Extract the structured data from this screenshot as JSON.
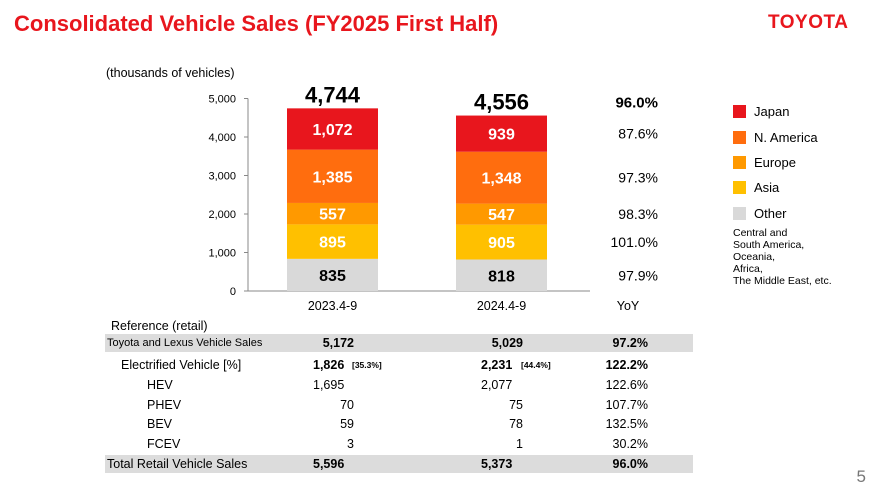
{
  "header": {
    "title": "Consolidated Vehicle Sales (FY2025 First Half)",
    "brand": "TOYOTA"
  },
  "units": "(thousands of vehicles)",
  "chart_data": {
    "type": "bar",
    "stacked": true,
    "categories": [
      "2023.4-9",
      "2024.4-9"
    ],
    "totals": [
      "4,744",
      "4,556"
    ],
    "series": [
      {
        "name": "Other",
        "values": [
          835,
          818
        ],
        "labels": [
          "835",
          "818"
        ],
        "color": "#d9d9d9",
        "label_color": "#000000",
        "yoy": "97.9%"
      },
      {
        "name": "Asia",
        "values": [
          895,
          905
        ],
        "labels": [
          "895",
          "905"
        ],
        "color": "#ffc000",
        "label_color": "#ffffff",
        "yoy": "101.0%"
      },
      {
        "name": "Europe",
        "values": [
          557,
          547
        ],
        "labels": [
          "557",
          "547"
        ],
        "color": "#ff9900",
        "label_color": "#ffffff",
        "yoy": "98.3%"
      },
      {
        "name": "N. America",
        "values": [
          1385,
          1348
        ],
        "labels": [
          "1,385",
          "1,348"
        ],
        "color": "#ff6d0e",
        "label_color": "#ffffff",
        "yoy": "97.3%"
      },
      {
        "name": "Japan",
        "values": [
          1072,
          939
        ],
        "labels": [
          "1,072",
          "939"
        ],
        "color": "#e8161d",
        "label_color": "#ffffff",
        "yoy": "87.6%"
      }
    ],
    "total_yoy": "96.0%",
    "yoy_label": "YoY",
    "ylim": [
      0,
      5000
    ],
    "yticks": [
      0,
      1000,
      2000,
      3000,
      4000,
      5000
    ],
    "ytick_labels": [
      "0",
      "1,000",
      "2,000",
      "3,000",
      "4,000",
      "5,000"
    ],
    "grid": false,
    "legend_position": "right"
  },
  "legend": {
    "items": [
      {
        "label": "Japan",
        "color": "#e8161d"
      },
      {
        "label": "N. America",
        "color": "#ff6d0e"
      },
      {
        "label": "Europe",
        "color": "#ff9900"
      },
      {
        "label": "Asia",
        "color": "#ffc000"
      },
      {
        "label": "Other",
        "color": "#d9d9d9"
      }
    ],
    "note": [
      "Central and",
      "South America,",
      "Oceania,",
      "Africa,",
      "The Middle East, etc."
    ]
  },
  "reference": {
    "title": "Reference (retail)",
    "rows": [
      {
        "label": "Toyota and Lexus Vehicle Sales",
        "v1": "5,172",
        "v2": "5,029",
        "yoy": "97.2%"
      },
      {
        "label": "Electrified Vehicle [%]",
        "v1": "1,826",
        "v1_pct": "[35.3%]",
        "v2": "2,231",
        "v2_pct": "[44.4%]",
        "yoy": "122.2%"
      },
      {
        "label": "HEV",
        "v1": "1,695",
        "v2": "2,077",
        "yoy": "122.6%"
      },
      {
        "label": "PHEV",
        "v1": "70",
        "v2": "75",
        "yoy": "107.7%"
      },
      {
        "label": "BEV",
        "v1": "59",
        "v2": "78",
        "yoy": "132.5%"
      },
      {
        "label": "FCEV",
        "v1": "3",
        "v2": "1",
        "yoy": "30.2%"
      },
      {
        "label": "Total Retail Vehicle Sales",
        "v1": "5,596",
        "v2": "5,373",
        "yoy": "96.0%"
      }
    ]
  },
  "page_number": "5"
}
